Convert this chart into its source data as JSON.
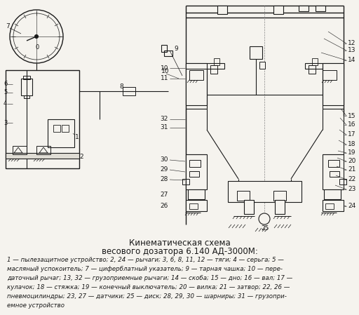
{
  "title_line1": "Кинематическая схема",
  "title_line2": "весового дозатора 6.140 АД-3000М:",
  "caption": "1 — пылезащитное устройство; 2, 24 — рычаги; 3, 6, 8, 11, 12 — тяги; 4 — серьга; 5 —\nмасляный успокоитель; 7 — циферблатный указатель; 9 — тарная чашка; 10 — пере-\nдаточный рычаг; 13, 32 — грузоприемные рычаги; 14 — скоба; 15 — дно; 16 — вал; 17 —\nкулачок; 18 — стяжка; 19 — конечный выключатель; 20 — вилка; 21 — затвор; 22, 26 —\nпневмоцилиндры; 23, 27 — датчики; 25 — диск; 28, 29, 30 — шарниры; 31 — грузопри-\nемное устройство",
  "bg_color": "#f5f3ee",
  "text_color": "#1a1a1a",
  "line_color": "#1a1a1a",
  "fig_width": 5.12,
  "fig_height": 4.49,
  "dpi": 100
}
